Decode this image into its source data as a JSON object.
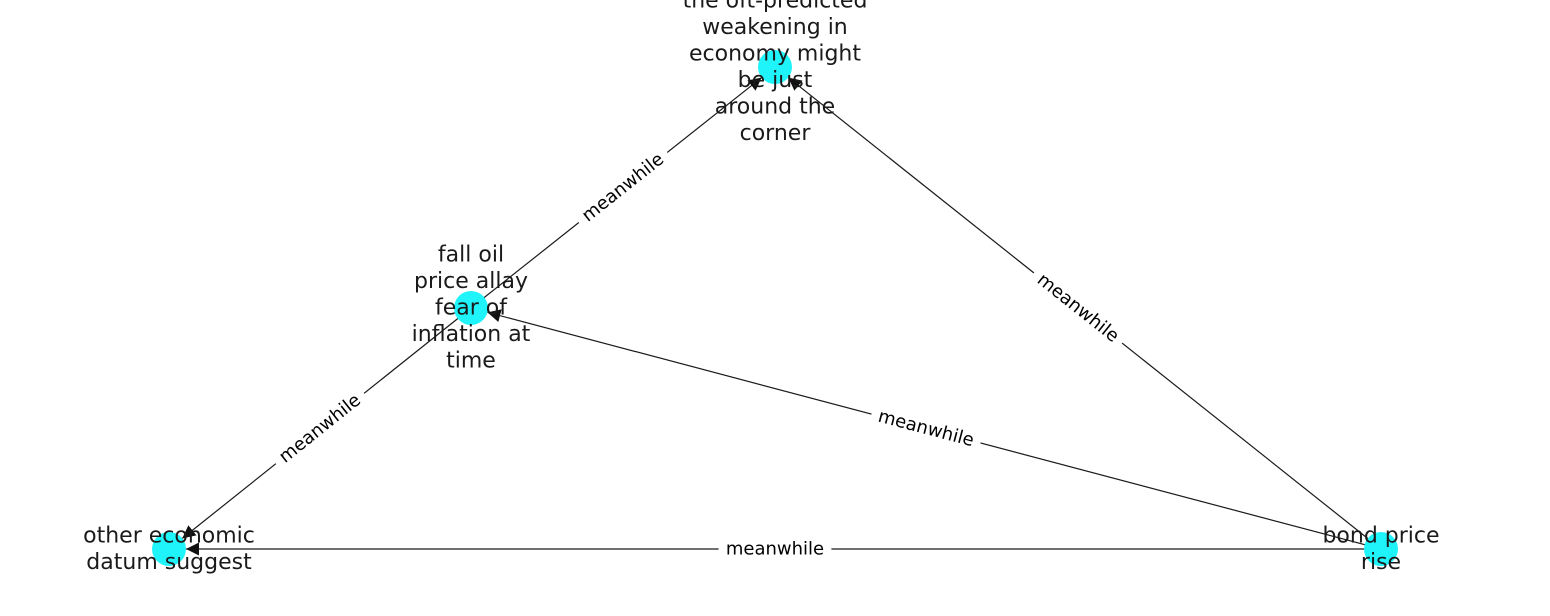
{
  "graph": {
    "nodes": [
      {
        "id": "n_top",
        "lines": [
          "the oft-predicted",
          "weakening in",
          "economy might",
          "be just",
          "around the",
          "corner"
        ]
      },
      {
        "id": "n_mid",
        "lines": [
          "fall oil",
          "price allay",
          "fear of",
          "inflation at",
          "time"
        ]
      },
      {
        "id": "n_left",
        "lines": [
          "other economic",
          "datum suggest"
        ]
      },
      {
        "id": "n_right",
        "lines": [
          "bond price",
          "rise"
        ]
      }
    ],
    "edges": [
      {
        "from": "n_mid",
        "to": "n_top",
        "label": "meanwhile"
      },
      {
        "from": "n_right",
        "to": "n_top",
        "label": "meanwhile"
      },
      {
        "from": "n_right",
        "to": "n_mid",
        "label": "meanwhile"
      },
      {
        "from": "n_mid",
        "to": "n_left",
        "label": "meanwhile"
      },
      {
        "from": "n_right",
        "to": "n_left",
        "label": "meanwhile"
      }
    ],
    "colors": {
      "node": "#1ff4fb",
      "edge": "#1a1a1a",
      "text": "#1a1a1a"
    }
  }
}
